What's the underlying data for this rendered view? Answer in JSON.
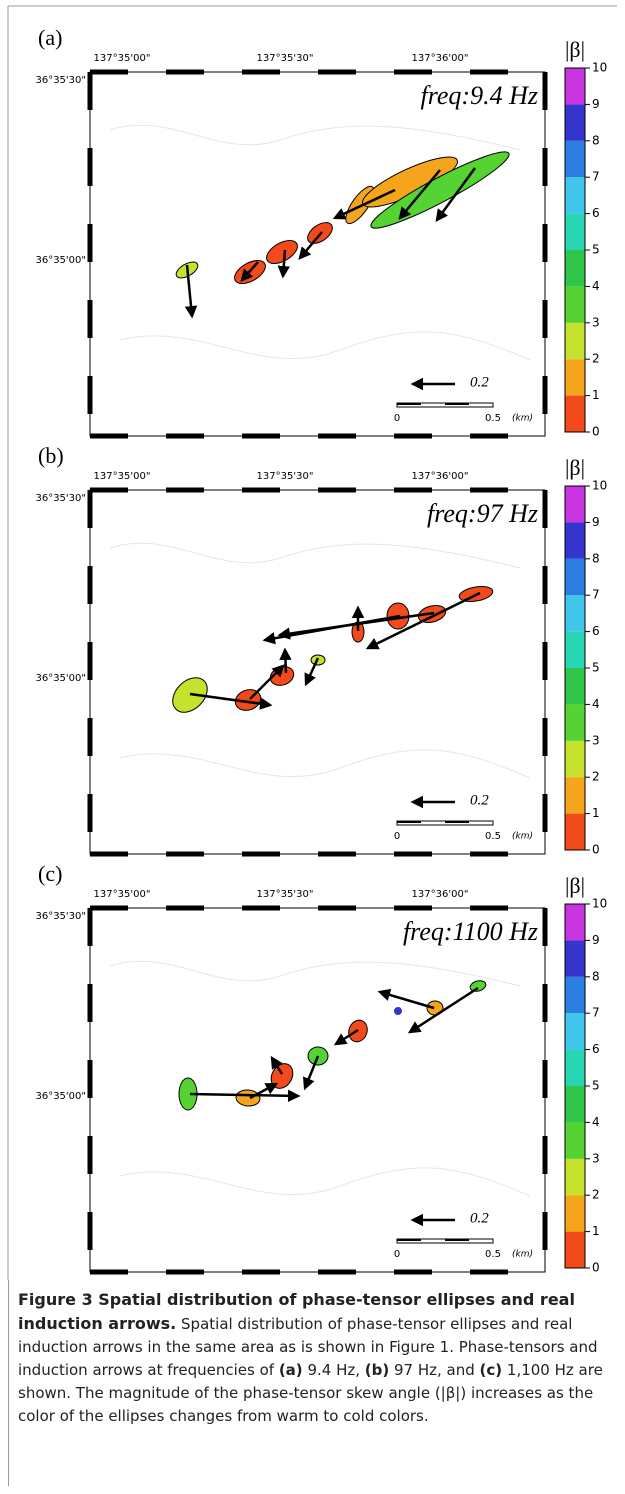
{
  "panels": [
    {
      "label": "(a)",
      "freq": "freq:9.4 Hz"
    },
    {
      "label": "(b)",
      "freq": "freq:97 Hz"
    },
    {
      "label": "(c)",
      "freq": "freq:1100 Hz"
    }
  ],
  "x_axis_labels": [
    "137°35'00\"",
    "137°35'30\"",
    "137°36'00\""
  ],
  "y_axis_labels": [
    "36°35'30\"",
    "36°35'00\""
  ],
  "scale": {
    "arrow": 0.2,
    "ticks": [
      0,
      0.5
    ],
    "unit": "(km)"
  },
  "colorbar": {
    "title": "|β|",
    "ticks": [
      0,
      1,
      2,
      3,
      4,
      5,
      6,
      7,
      8,
      9,
      10
    ],
    "colors": [
      "#f24a1a",
      "#f5a51c",
      "#c6e22c",
      "#55d332",
      "#2fc64a",
      "#28d6b4",
      "#3fc6ea",
      "#2b7fe0",
      "#3434cf",
      "#c835e0"
    ]
  },
  "caption": {
    "title": "Figure 3 Spatial distribution of phase-tensor ellipses and real induction arrows.",
    "body": [
      "Spatial distribution of phase-tensor ellipses and real induction arrows in the same area as is shown in Figure 1. Phase-tensors and induction arrows at frequencies of ",
      "(a)",
      " 9.4 Hz, ",
      "(b)",
      " 97 Hz, and ",
      "(c)",
      " 1,100 Hz are shown. The magnitude of the phase-tensor skew angle (|β|) increases as the color of the ellipses changes from warm to cold colors."
    ]
  }
}
